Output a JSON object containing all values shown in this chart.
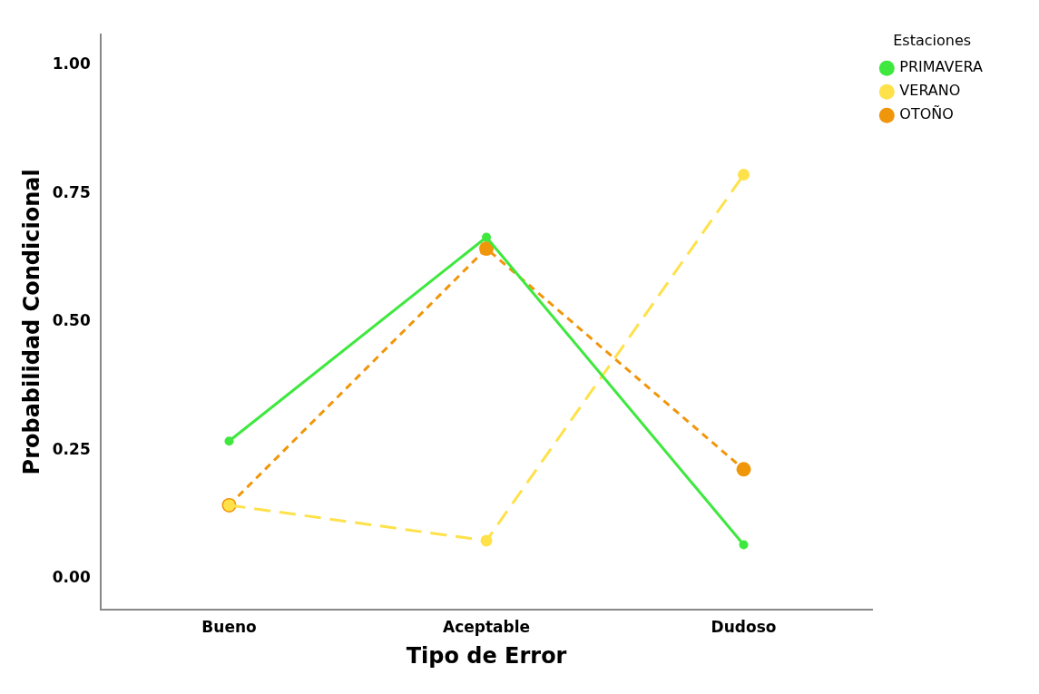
{
  "chart_data": {
    "type": "line",
    "xlabel": "Tipo de Error",
    "ylabel": "Probabilidad Condicional",
    "legend_title": "Estaciones",
    "categories": [
      "Bueno",
      "Aceptable",
      "Dudoso"
    ],
    "series": [
      {
        "name": "PRIMAVERA",
        "color": "#3ee83e",
        "line_style": "solid",
        "values": [
          0.268,
          0.665,
          0.066
        ]
      },
      {
        "name": "VERANO",
        "color": "#ffe14a",
        "line_style": "dashed",
        "values": [
          0.143,
          0.074,
          0.787
        ]
      },
      {
        "name": "OTOÑO",
        "color": "#f0960a",
        "line_style": "dotted",
        "values": [
          0.143,
          0.643,
          0.213
        ]
      }
    ],
    "ylim": [
      -0.06,
      1.06
    ],
    "yticks": [
      {
        "value": 0,
        "label": "0.00"
      },
      {
        "value": 0.25,
        "label": "0.25"
      },
      {
        "value": 0.5,
        "label": "0.50"
      },
      {
        "value": 0.75,
        "label": "0.75"
      },
      {
        "value": 1,
        "label": "1.00"
      }
    ],
    "grid": false,
    "legend": "top right",
    "marker": "circle"
  }
}
